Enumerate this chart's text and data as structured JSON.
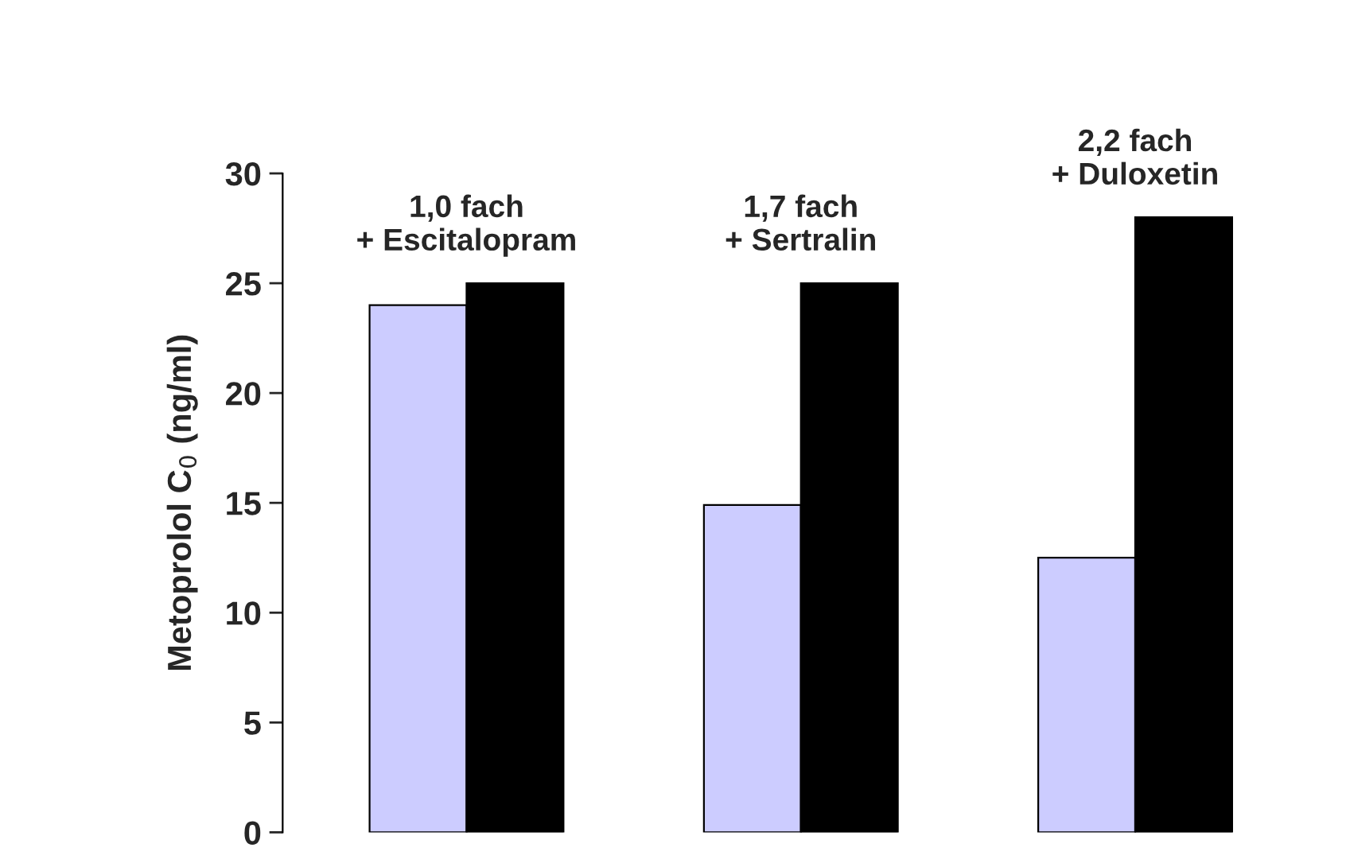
{
  "chart_data": {
    "type": "bar",
    "ylabel": "Metoprolol C$_{0}$ (ng/ml)",
    "categories": [
      null,
      null,
      null
    ],
    "series": [
      {
        "color": "#ccccff",
        "values": [
          24,
          14.9,
          12.5
        ]
      },
      {
        "color": "#000000",
        "values": [
          25,
          25,
          28
        ]
      }
    ],
    "ylim": [
      0,
      30
    ],
    "yticks": [
      0,
      5,
      10,
      15,
      20,
      25,
      30
    ],
    "grid": false,
    "legend": false,
    "annotations": [
      "1,0 fach\n+ Escitalopram",
      "1,7 fach\n+ Sertralin",
      "2,2 fach\n+ Duloxetin"
    ]
  }
}
